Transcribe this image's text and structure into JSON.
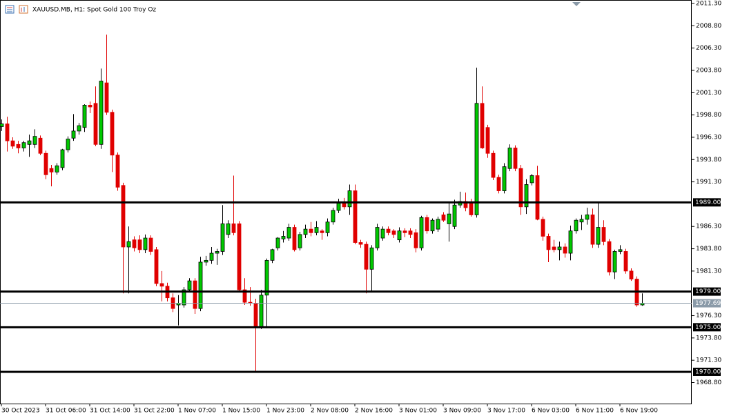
{
  "chart_data": {
    "type": "candlestick",
    "title": "XAUUSD.MB, H1:  Spot Gold 100 Troy Oz",
    "categories": [
      "30 Oct 2023",
      null,
      null,
      null,
      null,
      null,
      null,
      null,
      "31 Oct 06:00",
      null,
      null,
      null,
      null,
      null,
      null,
      null,
      "31 Oct 14:00",
      null,
      null,
      null,
      null,
      null,
      null,
      null,
      "31 Oct 22:00",
      null,
      null,
      null,
      null,
      null,
      null,
      null,
      "1 Nov 07:00",
      null,
      null,
      null,
      null,
      null,
      null,
      null,
      "1 Nov 15:00",
      null,
      null,
      null,
      null,
      null,
      null,
      null,
      "1 Nov 23:00",
      null,
      null,
      null,
      null,
      null,
      null,
      null,
      "2 Nov 08:00",
      null,
      null,
      null,
      null,
      null,
      null,
      null,
      "2 Nov 16:00",
      null,
      null,
      null,
      null,
      null,
      null,
      null,
      "3 Nov 01:00",
      null,
      null,
      null,
      null,
      null,
      null,
      null,
      "3 Nov 09:00",
      null,
      null,
      null,
      null,
      null,
      null,
      null,
      "3 Nov 17:00",
      null,
      null,
      null,
      null,
      null,
      null,
      null,
      "6 Nov 03:00",
      null,
      null,
      null,
      null,
      null,
      null,
      null,
      "6 Nov 11:00",
      null,
      null,
      null,
      null,
      null,
      null,
      null,
      "6 Nov 19:00",
      null,
      null,
      null,
      null
    ],
    "open": [
      1997.5,
      1997.8,
      1995.9,
      1995.5,
      1995.1,
      1995.5,
      1995.5,
      1996.2,
      1994.5,
      1992.8,
      1992.4,
      1992.9,
      1994.9,
      1996.2,
      1997.0,
      1997.4,
      1999.9,
      2000.1,
      1995.5,
      2002.4,
      1999.1,
      1994.3,
      1990.9,
      1984.0,
      1984.8,
      1984.8,
      1983.7,
      1985.0,
      1983.7,
      1979.9,
      1979.6,
      1978.3,
      1977.5,
      1977.5,
      1979.2,
      1980.2,
      1977.1,
      1982.3,
      1982.5,
      1983.3,
      1983.5,
      1985.4,
      1986.6,
      1986.6,
      1979.2,
      1977.8,
      1977.7,
      1975.0,
      1978.6,
      1982.5,
      1983.9,
      1984.9,
      1985.0,
      1986.2,
      1983.9,
      1985.4,
      1986.0,
      1985.6,
      1985.8,
      1985.6,
      1986.8,
      1988.1,
      1988.9,
      1988.5,
      1990.3,
      1984.5,
      1984.3,
      1981.5,
      1983.9,
      1985.0,
      1986.0,
      1985.8,
      1984.8,
      1985.8,
      1985.8,
      1985.6,
      1983.9,
      1987.3,
      1985.8,
      1986.0,
      1987.6,
      1986.6,
      1986.3,
      1988.7,
      1989.1,
      1988.9,
      1987.6,
      2000.1,
      1997.4,
      1994.5,
      1991.8,
      1990.3,
      1992.8,
      1995.1,
      1992.8,
      1988.5,
      1991.2,
      1992.0,
      1987.1,
      1985.2,
      1984.0,
      1983.7,
      1984.0,
      1983.3,
      1985.8,
      1986.8,
      1987.1,
      1987.6,
      1984.3,
      1986.2,
      1984.6,
      1981.2,
      1983.5,
      1983.5,
      1981.3,
      1980.4,
      1977.5
    ],
    "high": [
      1998.3,
      1998.6,
      1996.3,
      1995.9,
      1995.9,
      1996.6,
      1997.2,
      1996.5,
      1994.8,
      1993.2,
      1993.4,
      1995.0,
      1996.4,
      1998.9,
      1997.9,
      2000.0,
      2000.3,
      2002.0,
      2004.0,
      2007.8,
      1999.4,
      1994.6,
      1991.2,
      1986.3,
      1985.2,
      1985.3,
      1985.4,
      1985.3,
      1984.0,
      1981.3,
      1980.0,
      1978.8,
      1978.6,
      1979.5,
      1980.5,
      1980.5,
      1982.9,
      1983.0,
      1984.0,
      1983.8,
      1988.7,
      1987.0,
      1992.0,
      1986.9,
      1980.5,
      1979.5,
      1978.2,
      1979.2,
      1982.7,
      1983.8,
      1985.1,
      1985.8,
      1986.6,
      1986.5,
      1985.7,
      1986.5,
      1986.8,
      1986.9,
      1986.0,
      1987.2,
      1988.4,
      1989.4,
      1989.5,
      1991.0,
      1991.0,
      1984.8,
      1984.6,
      1984.2,
      1986.6,
      1986.3,
      1986.3,
      1986.0,
      1986.2,
      1986.1,
      1986.1,
      1986.0,
      1987.5,
      1987.6,
      1987.2,
      1987.4,
      1987.9,
      1989.0,
      1989.3,
      1990.2,
      1990.1,
      1989.4,
      2004.1,
      2002.0,
      1997.7,
      1994.8,
      1992.1,
      1993.4,
      1995.5,
      1995.4,
      1993.2,
      1991.6,
      1992.2,
      1993.1,
      1987.4,
      1985.5,
      1984.8,
      1984.6,
      1984.4,
      1986.4,
      1987.2,
      1987.6,
      1988.4,
      1988.3,
      1989.0,
      1987.0,
      1984.9,
      1983.7,
      1984.2,
      1983.8,
      1981.6,
      1980.7,
      1978.8
    ],
    "low": [
      1997.0,
      1994.7,
      1995.0,
      1994.5,
      1994.7,
      1994.1,
      1995.1,
      1994.3,
      1991.6,
      1990.8,
      1992.1,
      1992.6,
      1994.6,
      1995.9,
      1996.6,
      1996.9,
      1999.0,
      1995.3,
      1995.0,
      1998.8,
      1992.4,
      1990.3,
      1978.8,
      1978.8,
      1983.5,
      1983.3,
      1983.3,
      1983.1,
      1979.6,
      1977.9,
      1977.9,
      1976.7,
      1975.2,
      1977.2,
      1978.9,
      1976.5,
      1976.8,
      1981.9,
      1982.1,
      1982.0,
      1983.1,
      1985.0,
      1985.3,
      1979.0,
      1977.5,
      1977.4,
      1969.9,
      1974.8,
      1974.9,
      1982.2,
      1983.6,
      1984.5,
      1984.7,
      1983.5,
      1983.6,
      1985.0,
      1985.2,
      1985.3,
      1984.8,
      1985.2,
      1986.5,
      1987.8,
      1988.2,
      1987.6,
      1984.3,
      1983.9,
      1978.8,
      1979.0,
      1983.6,
      1984.7,
      1985.3,
      1985.0,
      1984.5,
      1985.1,
      1985.0,
      1983.4,
      1983.6,
      1985.5,
      1985.5,
      1985.7,
      1986.8,
      1984.6,
      1986.0,
      1988.4,
      1988.0,
      1987.4,
      1987.3,
      1995.0,
      1994.0,
      1991.5,
      1990.0,
      1990.0,
      1992.5,
      1992.5,
      1987.6,
      1987.7,
      1990.9,
      1987.0,
      1984.7,
      1982.3,
      1983.4,
      1982.5,
      1982.8,
      1982.5,
      1985.5,
      1985.9,
      1986.5,
      1983.9,
      1983.9,
      1984.2,
      1980.8,
      1980.4,
      1983.2,
      1981.0,
      1980.2,
      1977.3,
      1977.4
    ],
    "close": [
      1997.8,
      1995.9,
      1995.3,
      1995.1,
      1995.7,
      1995.9,
      1996.4,
      1994.5,
      1992.1,
      1992.4,
      1993.1,
      1994.9,
      1996.1,
      1997.0,
      1997.6,
      1999.9,
      1999.7,
      1995.5,
      2002.6,
      1999.1,
      1994.3,
      1990.7,
      1984.0,
      1984.6,
      1983.9,
      1983.7,
      1985.0,
      1983.5,
      1979.9,
      1979.6,
      1978.3,
      1977.1,
      1977.7,
      1979.2,
      1980.2,
      1977.1,
      1982.3,
      1982.5,
      1983.3,
      1983.5,
      1986.6,
      1986.6,
      1985.6,
      1979.2,
      1977.8,
      1977.7,
      1975.0,
      1978.6,
      1982.5,
      1983.7,
      1985.0,
      1985.2,
      1986.2,
      1983.7,
      1985.4,
      1986.0,
      1985.6,
      1986.2,
      1985.6,
      1986.8,
      1988.1,
      1988.9,
      1988.5,
      1990.3,
      1984.5,
      1984.3,
      1981.5,
      1983.9,
      1986.2,
      1986.0,
      1985.6,
      1985.4,
      1985.8,
      1985.6,
      1985.4,
      1983.9,
      1987.3,
      1985.8,
      1987.0,
      1987.1,
      1987.0,
      1987.7,
      1988.7,
      1989.1,
      1988.4,
      1987.6,
      2000.1,
      1995.1,
      1994.5,
      1991.8,
      1990.3,
      1993.0,
      1995.1,
      1992.8,
      1988.5,
      1991.0,
      1992.0,
      1987.1,
      1985.2,
      1983.7,
      1983.7,
      1984.0,
      1983.3,
      1985.8,
      1987.0,
      1987.1,
      1987.6,
      1984.3,
      1986.2,
      1984.6,
      1981.2,
      1983.5,
      1983.7,
      1981.3,
      1980.4,
      1977.5,
      1977.69
    ],
    "up_color": "#00c800",
    "down_color": "#e00000",
    "ylim": [
      1966.44,
      2011.69
    ],
    "yticks": [
      {
        "value": 2011.3,
        "label": "2011.30"
      },
      {
        "value": 2008.8,
        "label": "2008.80"
      },
      {
        "value": 2006.3,
        "label": "2006.30"
      },
      {
        "value": 2003.8,
        "label": "2003.80"
      },
      {
        "value": 2001.3,
        "label": "2001.30"
      },
      {
        "value": 1998.8,
        "label": "1998.80"
      },
      {
        "value": 1996.3,
        "label": "1996.30"
      },
      {
        "value": 1993.8,
        "label": "1993.80"
      },
      {
        "value": 1991.3,
        "label": "1991.30"
      },
      {
        "value": 1986.3,
        "label": "1986.30"
      },
      {
        "value": 1983.8,
        "label": "1983.80"
      },
      {
        "value": 1981.3,
        "label": "1981.30"
      },
      {
        "value": 1976.3,
        "label": "1976.30"
      },
      {
        "value": 1973.8,
        "label": "1973.80"
      },
      {
        "value": 1971.3,
        "label": "1971.30"
      },
      {
        "value": 1968.8,
        "label": "1968.80"
      }
    ],
    "levels": [
      {
        "value": 1989,
        "label": "1989.00"
      },
      {
        "value": 1979,
        "label": "1979.00"
      },
      {
        "value": 1975,
        "label": "1975.00"
      },
      {
        "value": 1970,
        "label": "1970.00"
      }
    ],
    "current_price": {
      "value": 1977.69,
      "label": "1977.69"
    }
  }
}
